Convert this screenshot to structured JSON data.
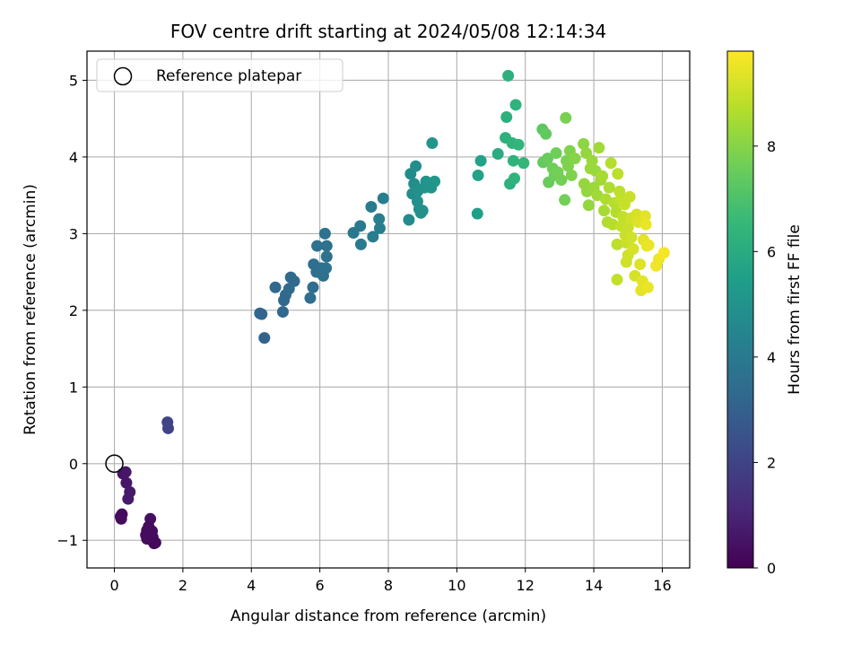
{
  "chart_data": {
    "type": "scatter",
    "title": "FOV centre drift starting at 2024/05/08 12:14:34",
    "xlabel": "Angular distance from reference (arcmin)",
    "ylabel": "Rotation from reference (arcmin)",
    "xlim": [
      -0.8,
      16.8
    ],
    "ylim": [
      -1.36,
      5.38
    ],
    "xticks": [
      "0",
      "2",
      "4",
      "6",
      "8",
      "10",
      "12",
      "14",
      "16"
    ],
    "yticks": [
      "−1",
      "0",
      "1",
      "2",
      "3",
      "4",
      "5"
    ],
    "grid": true,
    "legend": {
      "position": "top-left",
      "entries": [
        "Reference platepar"
      ]
    },
    "reference_point": {
      "x": 0,
      "y": 0
    },
    "colorbar": {
      "label": "Hours from first FF file",
      "colormap": "viridis",
      "range": [
        0,
        9.8
      ],
      "ticks": [
        "0",
        "2",
        "4",
        "6",
        "8"
      ]
    },
    "points": [
      [
        0.25,
        -0.13,
        0.5
      ],
      [
        0.33,
        -0.11,
        0.6
      ],
      [
        0.35,
        -0.25,
        0.6
      ],
      [
        0.45,
        -0.37,
        0.7
      ],
      [
        0.4,
        -0.46,
        0.7
      ],
      [
        0.22,
        -0.66,
        0.3
      ],
      [
        0.2,
        -0.72,
        0.3
      ],
      [
        0.18,
        -0.69,
        0.3
      ],
      [
        1.05,
        -0.72,
        0.4
      ],
      [
        1.0,
        -0.82,
        0.3
      ],
      [
        0.95,
        -0.87,
        0.3
      ],
      [
        1.1,
        -0.88,
        0.3
      ],
      [
        0.92,
        -0.93,
        0.3
      ],
      [
        1.12,
        -0.96,
        0.3
      ],
      [
        0.95,
        -0.98,
        0.3
      ],
      [
        1.2,
        -1.03,
        0.3
      ],
      [
        1.1,
        -1.0,
        0.3
      ],
      [
        1.16,
        -1.04,
        0.2
      ],
      [
        1.55,
        0.54,
        2.0
      ],
      [
        1.57,
        0.46,
        2.0
      ],
      [
        4.25,
        1.96,
        3.2
      ],
      [
        4.3,
        1.95,
        3.2
      ],
      [
        4.38,
        1.64,
        3.1
      ],
      [
        4.7,
        2.3,
        3.3
      ],
      [
        4.92,
        1.98,
        3.3
      ],
      [
        4.95,
        2.13,
        3.3
      ],
      [
        5.0,
        2.2,
        3.3
      ],
      [
        5.1,
        2.28,
        3.4
      ],
      [
        5.15,
        2.43,
        3.4
      ],
      [
        5.25,
        2.38,
        3.4
      ],
      [
        5.72,
        2.16,
        3.5
      ],
      [
        5.8,
        2.3,
        3.5
      ],
      [
        5.82,
        2.6,
        3.5
      ],
      [
        5.9,
        2.5,
        3.6
      ],
      [
        5.92,
        2.84,
        3.6
      ],
      [
        6.05,
        2.55,
        3.6
      ],
      [
        6.1,
        2.45,
        3.6
      ],
      [
        6.18,
        2.55,
        3.7
      ],
      [
        6.2,
        2.7,
        3.7
      ],
      [
        6.15,
        3.0,
        3.7
      ],
      [
        6.2,
        2.84,
        3.7
      ],
      [
        6.98,
        3.01,
        3.9
      ],
      [
        7.18,
        3.1,
        4.0
      ],
      [
        7.2,
        2.86,
        4.0
      ],
      [
        7.5,
        3.35,
        4.1
      ],
      [
        7.55,
        2.96,
        4.1
      ],
      [
        7.73,
        3.19,
        4.2
      ],
      [
        7.75,
        3.07,
        4.2
      ],
      [
        7.85,
        3.46,
        4.2
      ],
      [
        8.6,
        3.18,
        4.7
      ],
      [
        8.65,
        3.78,
        4.7
      ],
      [
        8.75,
        3.65,
        4.8
      ],
      [
        8.7,
        3.52,
        4.8
      ],
      [
        8.85,
        3.55,
        4.9
      ],
      [
        8.8,
        3.88,
        4.8
      ],
      [
        8.9,
        3.32,
        4.9
      ],
      [
        8.95,
        3.27,
        4.9
      ],
      [
        9.0,
        3.3,
        4.9
      ],
      [
        8.85,
        3.42,
        4.9
      ],
      [
        9.05,
        3.6,
        5.0
      ],
      [
        9.1,
        3.68,
        5.0
      ],
      [
        9.28,
        4.18,
        5.1
      ],
      [
        9.25,
        3.6,
        5.1
      ],
      [
        9.35,
        3.68,
        5.2
      ],
      [
        9.15,
        3.65,
        5.1
      ],
      [
        10.6,
        3.26,
        5.5
      ],
      [
        10.62,
        3.76,
        5.6
      ],
      [
        10.7,
        3.95,
        5.6
      ],
      [
        11.2,
        4.04,
        6.0
      ],
      [
        11.5,
        5.06,
        6.2
      ],
      [
        11.45,
        4.52,
        6.2
      ],
      [
        11.42,
        4.25,
        6.2
      ],
      [
        11.55,
        3.65,
        6.2
      ],
      [
        11.62,
        4.18,
        6.3
      ],
      [
        11.68,
        3.72,
        6.3
      ],
      [
        11.72,
        4.68,
        6.3
      ],
      [
        11.65,
        3.95,
        6.3
      ],
      [
        11.8,
        4.16,
        6.4
      ],
      [
        11.95,
        3.92,
        6.5
      ],
      [
        12.5,
        4.36,
        7.3
      ],
      [
        12.6,
        4.3,
        7.4
      ],
      [
        12.52,
        3.93,
        7.4
      ],
      [
        12.65,
        3.98,
        7.5
      ],
      [
        12.68,
        3.67,
        7.5
      ],
      [
        12.8,
        3.85,
        7.6
      ],
      [
        12.9,
        4.05,
        7.6
      ],
      [
        12.85,
        3.76,
        7.6
      ],
      [
        12.95,
        3.8,
        7.7
      ],
      [
        13.05,
        3.7,
        7.7
      ],
      [
        13.15,
        3.44,
        7.7
      ],
      [
        13.18,
        4.51,
        7.8
      ],
      [
        13.2,
        3.95,
        7.8
      ],
      [
        13.25,
        3.88,
        7.9
      ],
      [
        13.3,
        4.08,
        7.9
      ],
      [
        13.35,
        3.76,
        7.9
      ],
      [
        13.45,
        3.98,
        8.0
      ],
      [
        13.7,
        4.17,
        8.1
      ],
      [
        13.72,
        3.65,
        8.2
      ],
      [
        13.8,
        3.55,
        8.2
      ],
      [
        13.78,
        4.05,
        8.2
      ],
      [
        13.85,
        3.37,
        8.2
      ],
      [
        13.9,
        3.85,
        8.3
      ],
      [
        13.95,
        3.95,
        8.3
      ],
      [
        14.0,
        3.6,
        8.3
      ],
      [
        14.1,
        3.5,
        8.4
      ],
      [
        14.15,
        4.12,
        8.4
      ],
      [
        14.05,
        3.82,
        8.3
      ],
      [
        14.2,
        3.7,
        8.4
      ],
      [
        14.25,
        3.75,
        8.5
      ],
      [
        14.3,
        3.3,
        8.5
      ],
      [
        14.35,
        3.45,
        8.6
      ],
      [
        14.4,
        3.15,
        8.6
      ],
      [
        14.5,
        3.92,
        8.7
      ],
      [
        14.55,
        3.12,
        8.7
      ],
      [
        14.45,
        3.6,
        8.6
      ],
      [
        14.6,
        3.4,
        8.7
      ],
      [
        14.7,
        3.78,
        8.8
      ],
      [
        14.65,
        3.28,
        8.7
      ],
      [
        14.75,
        3.55,
        8.8
      ],
      [
        14.68,
        2.86,
        8.8
      ],
      [
        14.68,
        2.4,
        8.9
      ],
      [
        14.8,
        3.1,
        8.9
      ],
      [
        14.85,
        3.22,
        8.9
      ],
      [
        14.78,
        3.45,
        8.9
      ],
      [
        14.9,
        3.38,
        9.0
      ],
      [
        14.92,
        2.98,
        9.0
      ],
      [
        14.95,
        2.88,
        9.0
      ],
      [
        15.0,
        3.08,
        9.0
      ],
      [
        15.05,
        3.48,
        9.0
      ],
      [
        14.95,
        2.63,
        9.1
      ],
      [
        15.0,
        2.72,
        9.1
      ],
      [
        15.08,
        3.2,
        9.1
      ],
      [
        15.1,
        2.95,
        9.1
      ],
      [
        15.15,
        2.8,
        9.2
      ],
      [
        15.2,
        2.45,
        9.2
      ],
      [
        15.25,
        3.25,
        9.2
      ],
      [
        15.3,
        3.15,
        9.3
      ],
      [
        15.35,
        2.6,
        9.3
      ],
      [
        15.38,
        2.26,
        9.4
      ],
      [
        15.42,
        2.38,
        9.4
      ],
      [
        15.45,
        2.92,
        9.4
      ],
      [
        15.5,
        3.23,
        9.4
      ],
      [
        15.52,
        3.12,
        9.5
      ],
      [
        15.55,
        2.84,
        9.5
      ],
      [
        15.58,
        2.3,
        9.5
      ],
      [
        15.6,
        2.85,
        9.5
      ],
      [
        15.82,
        2.58,
        9.6
      ],
      [
        15.9,
        2.67,
        9.6
      ],
      [
        16.05,
        2.75,
        9.7
      ]
    ]
  }
}
